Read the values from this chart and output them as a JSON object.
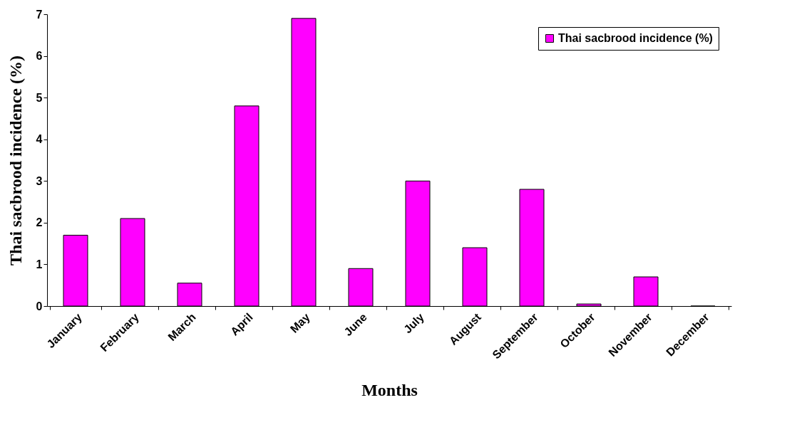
{
  "chart_data": {
    "type": "bar",
    "xlabel": "Months",
    "ylabel": "Thai sacbrood incidence (%)",
    "categories": [
      "January",
      "February",
      "March",
      "April",
      "May",
      "June",
      "July",
      "August",
      "September",
      "October",
      "November",
      "December"
    ],
    "series": [
      {
        "name": "Thai sacbrood incidence (%)",
        "color": "#ff00ff",
        "values": [
          1.7,
          2.1,
          0.55,
          4.8,
          6.9,
          0.9,
          3.0,
          1.4,
          2.8,
          0.05,
          0.7,
          0
        ]
      }
    ],
    "ylim": [
      0,
      7
    ],
    "yticks": [
      0,
      1,
      2,
      3,
      4,
      5,
      6,
      7
    ],
    "grid": false,
    "legend": "top right"
  }
}
